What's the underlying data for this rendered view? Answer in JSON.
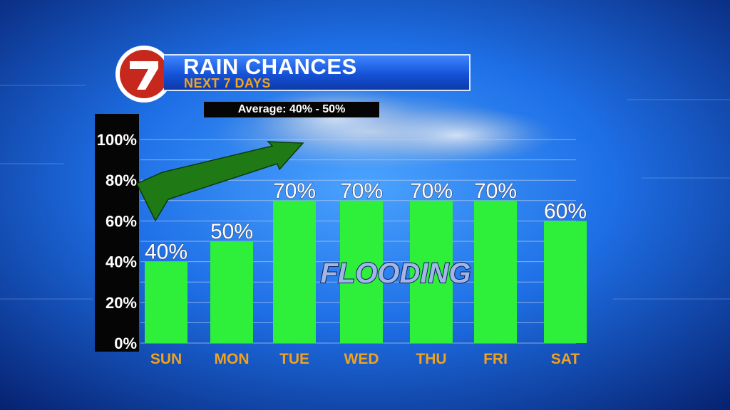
{
  "header": {
    "logo_text": "7",
    "title": "RAIN CHANCES",
    "subtitle": "NEXT 7 DAYS",
    "average_label": "Average: 40% - 50%"
  },
  "overlay_text": "FLOODING",
  "colors": {
    "bar": "#2ef03a",
    "axis_panel": "#050505",
    "day_label": "#f0a21c",
    "arrow": "#1f7a16",
    "title_bar": "#1552d8",
    "logo_red": "#c6281e"
  },
  "chart_data": {
    "type": "bar",
    "categories": [
      "SUN",
      "MON",
      "TUE",
      "WED",
      "THU",
      "FRI",
      "SAT"
    ],
    "values": [
      40,
      50,
      70,
      70,
      70,
      70,
      60
    ],
    "data_labels": [
      "40%",
      "50%",
      "70%",
      "70%",
      "70%",
      "70%",
      "60%"
    ],
    "yticks": [
      "0%",
      "20%",
      "40%",
      "60%",
      "80%",
      "100%"
    ],
    "ylim": [
      0,
      100
    ],
    "grid": true,
    "legend": "none"
  }
}
